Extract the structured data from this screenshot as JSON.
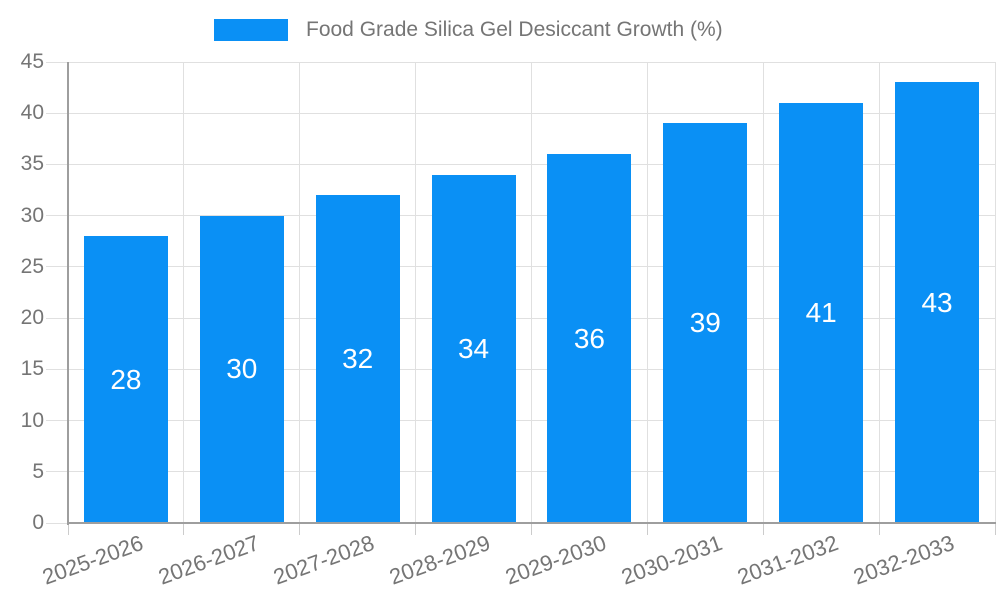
{
  "chart_data": {
    "type": "bar",
    "title": "Food Grade Silica Gel Desiccant Growth (%)",
    "legend_position": "top",
    "categories": [
      "2025-2026",
      "2026-2027",
      "2027-2028",
      "2028-2029",
      "2029-2030",
      "2030-2031",
      "2031-2032",
      "2032-2033"
    ],
    "values": [
      28,
      30,
      32,
      34,
      36,
      39,
      41,
      43
    ],
    "xlabel": "",
    "ylabel": "",
    "ylim": [
      0,
      45
    ],
    "yticks": [
      0,
      5,
      10,
      15,
      20,
      25,
      30,
      35,
      40,
      45
    ],
    "grid": "horizontal-and-vertical",
    "value_labels": "inside-center-white",
    "x_label_rotation_deg": -20,
    "colors": {
      "bar": "#0a90f5",
      "value_label": "#ffffff",
      "axis_text": "#757575",
      "gridline": "#e0e0e0",
      "tick_line": "#cccccc",
      "axis_line": "#9e9e9e",
      "background": "#ffffff"
    }
  }
}
